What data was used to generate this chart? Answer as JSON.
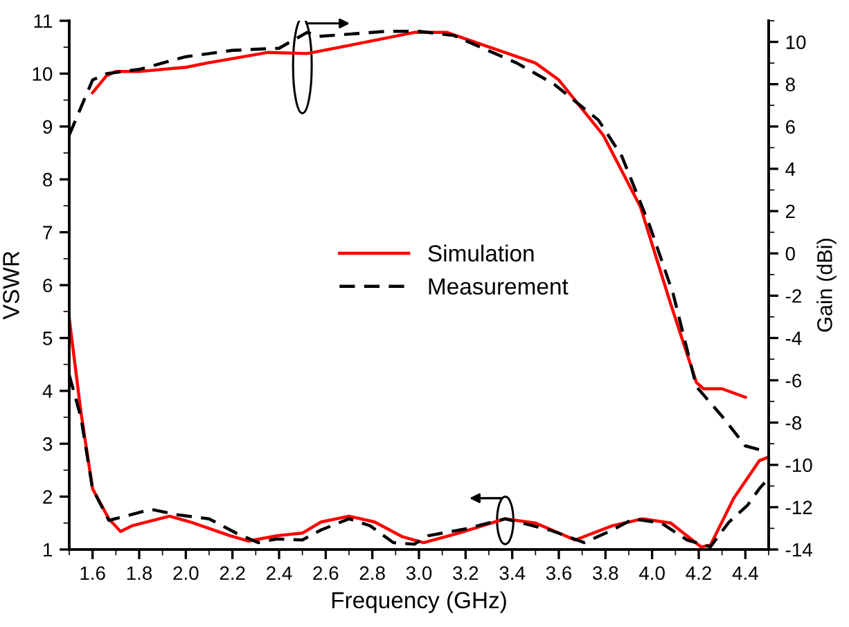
{
  "chart_data": {
    "type": "line",
    "xlabel": "Frequency (GHz)",
    "ylabel": "VSWR",
    "y2label": "Gain (dBi)",
    "xlim": [
      1.5,
      4.5
    ],
    "xticks": [
      1.6,
      1.8,
      {
        "value": 2,
        "label": "2.0"
      },
      2.2,
      2.4,
      2.6,
      2.8,
      {
        "value": 3,
        "label": "3.0"
      },
      3.2,
      3.4,
      3.6,
      3.8,
      {
        "value": 4,
        "label": "4.0"
      },
      4.2,
      4.4
    ],
    "ylim": [
      1,
      11
    ],
    "yticks": [
      1,
      2,
      3,
      4,
      5,
      6,
      7,
      8,
      9,
      10,
      11
    ],
    "y2lim": [
      -14,
      11
    ],
    "y2ticks": [
      -14,
      -12,
      -10,
      -8,
      -6,
      -4,
      -2,
      0,
      2,
      4,
      6,
      8,
      10
    ],
    "grid": false,
    "legend": "center",
    "marker": "none",
    "series": [
      {
        "name": "Simulation",
        "color": "#ff0000",
        "line_style": "solid",
        "x": [
          1.5,
          1.55,
          1.6,
          1.67,
          1.72,
          1.77,
          1.93,
          2.02,
          2.19,
          2.27,
          2.39,
          2.5,
          2.58,
          2.7,
          2.81,
          2.93,
          3.02,
          3.17,
          3.37,
          3.5,
          3.67,
          3.83,
          3.96,
          4.08,
          4.21,
          4.25,
          4.35,
          4.46,
          4.5
        ],
        "values": [
          5.37,
          3.6,
          2.15,
          1.58,
          1.34,
          1.45,
          1.63,
          1.52,
          1.26,
          1.16,
          1.26,
          1.31,
          1.52,
          1.63,
          1.52,
          1.24,
          1.13,
          1.31,
          1.58,
          1.5,
          1.18,
          1.45,
          1.58,
          1.5,
          1.05,
          1.08,
          1.97,
          2.68,
          2.75
        ]
      },
      {
        "name": "Measurement",
        "color": "#000000",
        "line_style": "dashed",
        "x": [
          1.5,
          1.55,
          1.6,
          1.67,
          1.74,
          1.85,
          1.96,
          2.1,
          2.22,
          2.31,
          2.39,
          2.5,
          2.58,
          2.7,
          2.79,
          2.89,
          2.98,
          3.04,
          3.2,
          3.37,
          3.56,
          3.71,
          3.83,
          3.92,
          4.04,
          4.15,
          4.25,
          4.33,
          4.41,
          4.46,
          4.5
        ],
        "values": [
          4.3,
          3.5,
          2.15,
          1.55,
          1.63,
          1.76,
          1.66,
          1.58,
          1.3,
          1.13,
          1.2,
          1.18,
          1.37,
          1.58,
          1.45,
          1.13,
          1.1,
          1.26,
          1.39,
          1.58,
          1.37,
          1.13,
          1.37,
          1.58,
          1.5,
          1.18,
          1.05,
          1.52,
          1.84,
          2.15,
          2.35
        ]
      },
      {
        "color": "#ff0000",
        "line_style": "solid",
        "axis": "y2",
        "x": [
          1.6,
          1.66,
          1.7,
          1.8,
          2.0,
          2.09,
          2.35,
          2.52,
          2.73,
          2.98,
          3.12,
          3.5,
          3.6,
          3.79,
          3.95,
          4.08,
          4.19,
          4.22,
          4.3,
          4.4
        ],
        "values": [
          7.6,
          8.4,
          8.6,
          8.6,
          8.8,
          9.0,
          9.5,
          9.45,
          9.9,
          10.45,
          10.45,
          9.0,
          8.2,
          5.6,
          2.2,
          -2.4,
          -6.1,
          -6.4,
          -6.4,
          -6.8
        ]
      },
      {
        "color": "#000000",
        "line_style": "dashed",
        "axis": "y2",
        "x": [
          1.5,
          1.6,
          1.66,
          1.73,
          1.8,
          2.0,
          2.2,
          2.4,
          2.52,
          2.57,
          2.86,
          3.0,
          3.15,
          3.42,
          3.58,
          3.77,
          3.87,
          3.99,
          4.09,
          4.19,
          4.3,
          4.4,
          4.5
        ],
        "values": [
          5.6,
          8.2,
          8.5,
          8.6,
          8.7,
          9.3,
          9.6,
          9.7,
          10.45,
          10.26,
          10.5,
          10.5,
          10.3,
          9.0,
          8.0,
          6.3,
          4.6,
          1.3,
          -1.9,
          -6.3,
          -7.7,
          -9.1,
          -9.4
        ]
      }
    ]
  }
}
